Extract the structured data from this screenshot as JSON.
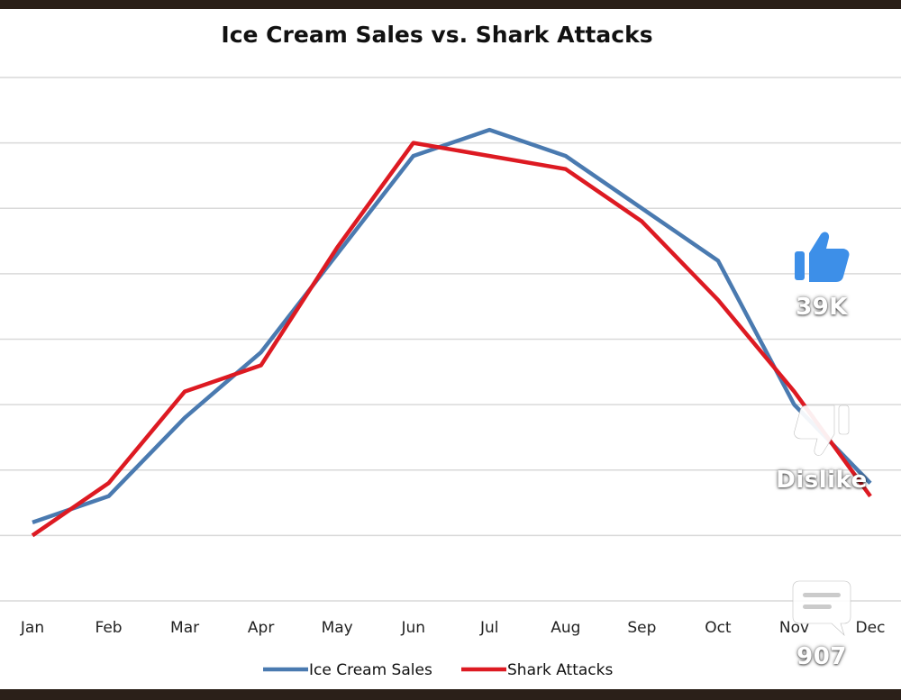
{
  "overlay": {
    "like": {
      "icon": "thumbs-up-icon",
      "count": "39K",
      "color": "#3d8fe8"
    },
    "dislike": {
      "icon": "thumbs-down-icon",
      "label": "Dislike"
    },
    "comment": {
      "icon": "comment-icon",
      "count": "907"
    }
  },
  "chart_data": {
    "type": "line",
    "title": "Ice Cream Sales vs. Shark Attacks",
    "xlabel": "",
    "ylabel": "",
    "categories": [
      "Jan",
      "Feb",
      "Mar",
      "Apr",
      "May",
      "Jun",
      "Jul",
      "Aug",
      "Sep",
      "Oct",
      "Nov",
      "Dec"
    ],
    "ylim": [
      0,
      8
    ],
    "y_ticks_labeled": false,
    "grid": true,
    "legend_position": "bottom",
    "series": [
      {
        "name": "Ice Cream Sales",
        "color": "#4a7ab0",
        "values": [
          1.2,
          1.6,
          2.8,
          3.8,
          5.3,
          6.8,
          7.2,
          6.8,
          6.0,
          5.2,
          3.0,
          1.8
        ]
      },
      {
        "name": "Shark Attacks",
        "color": "#dd1a22",
        "values": [
          1.0,
          1.8,
          3.2,
          3.6,
          5.4,
          7.0,
          6.8,
          6.6,
          5.8,
          4.6,
          3.2,
          1.6
        ]
      }
    ]
  }
}
